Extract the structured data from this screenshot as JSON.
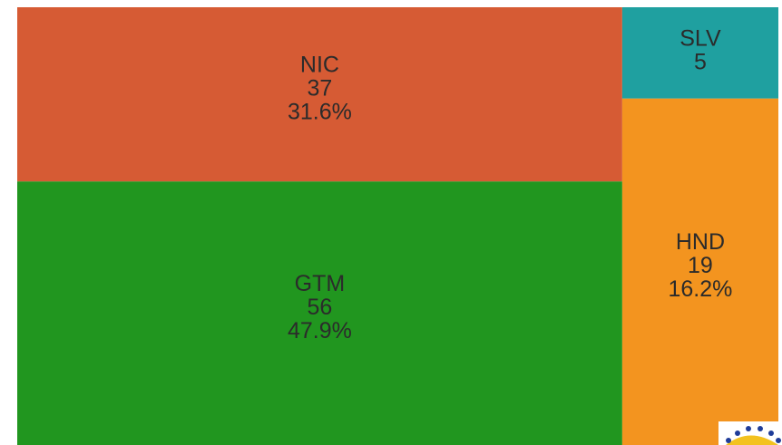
{
  "chart_data": {
    "type": "treemap",
    "categories": [
      "GTM",
      "NIC",
      "HND",
      "SLV"
    ],
    "values": [
      56,
      37,
      19,
      5
    ],
    "share_labels": [
      "47.9%",
      "31.6%",
      "16.2%",
      null
    ],
    "colors": [
      "#21961f",
      "#d65b34",
      "#f3941f",
      "#1fa0a0"
    ]
  }
}
